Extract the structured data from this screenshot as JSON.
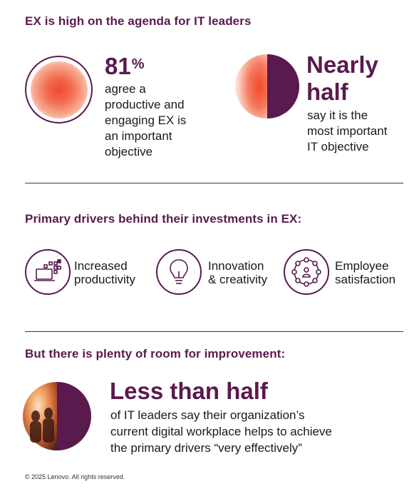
{
  "section1": {
    "heading": "EX is high on the agenda for IT leaders",
    "stat1": {
      "number": "81",
      "unit": "%",
      "text": "agree a\nproductive and\nengaging EX is\nan important\nobjective"
    },
    "stat2": {
      "number": "Nearly\nhalf",
      "text": "say it is the\nmost important\nIT objective"
    }
  },
  "section2": {
    "heading": "Primary drivers behind their investments in EX:",
    "drivers": [
      {
        "icon": "laptop-productivity-icon",
        "label": "Increased\nproductivity"
      },
      {
        "icon": "lightbulb-icon",
        "label": "Innovation\n& creativity"
      },
      {
        "icon": "people-network-icon",
        "label": "Employee\nsatisfaction"
      }
    ]
  },
  "section3": {
    "heading": "But there is plenty of room for improvement:",
    "stat": {
      "number": "Less than half",
      "text": "of IT leaders say their organization’s\ncurrent digital workplace helps to achieve\nthe primary drivers “very effectively”"
    }
  },
  "footer": "© 2025 Lenovo. All rights reserved.",
  "colors": {
    "brand": "#5a1a4e",
    "accent": "#f04a2f"
  }
}
